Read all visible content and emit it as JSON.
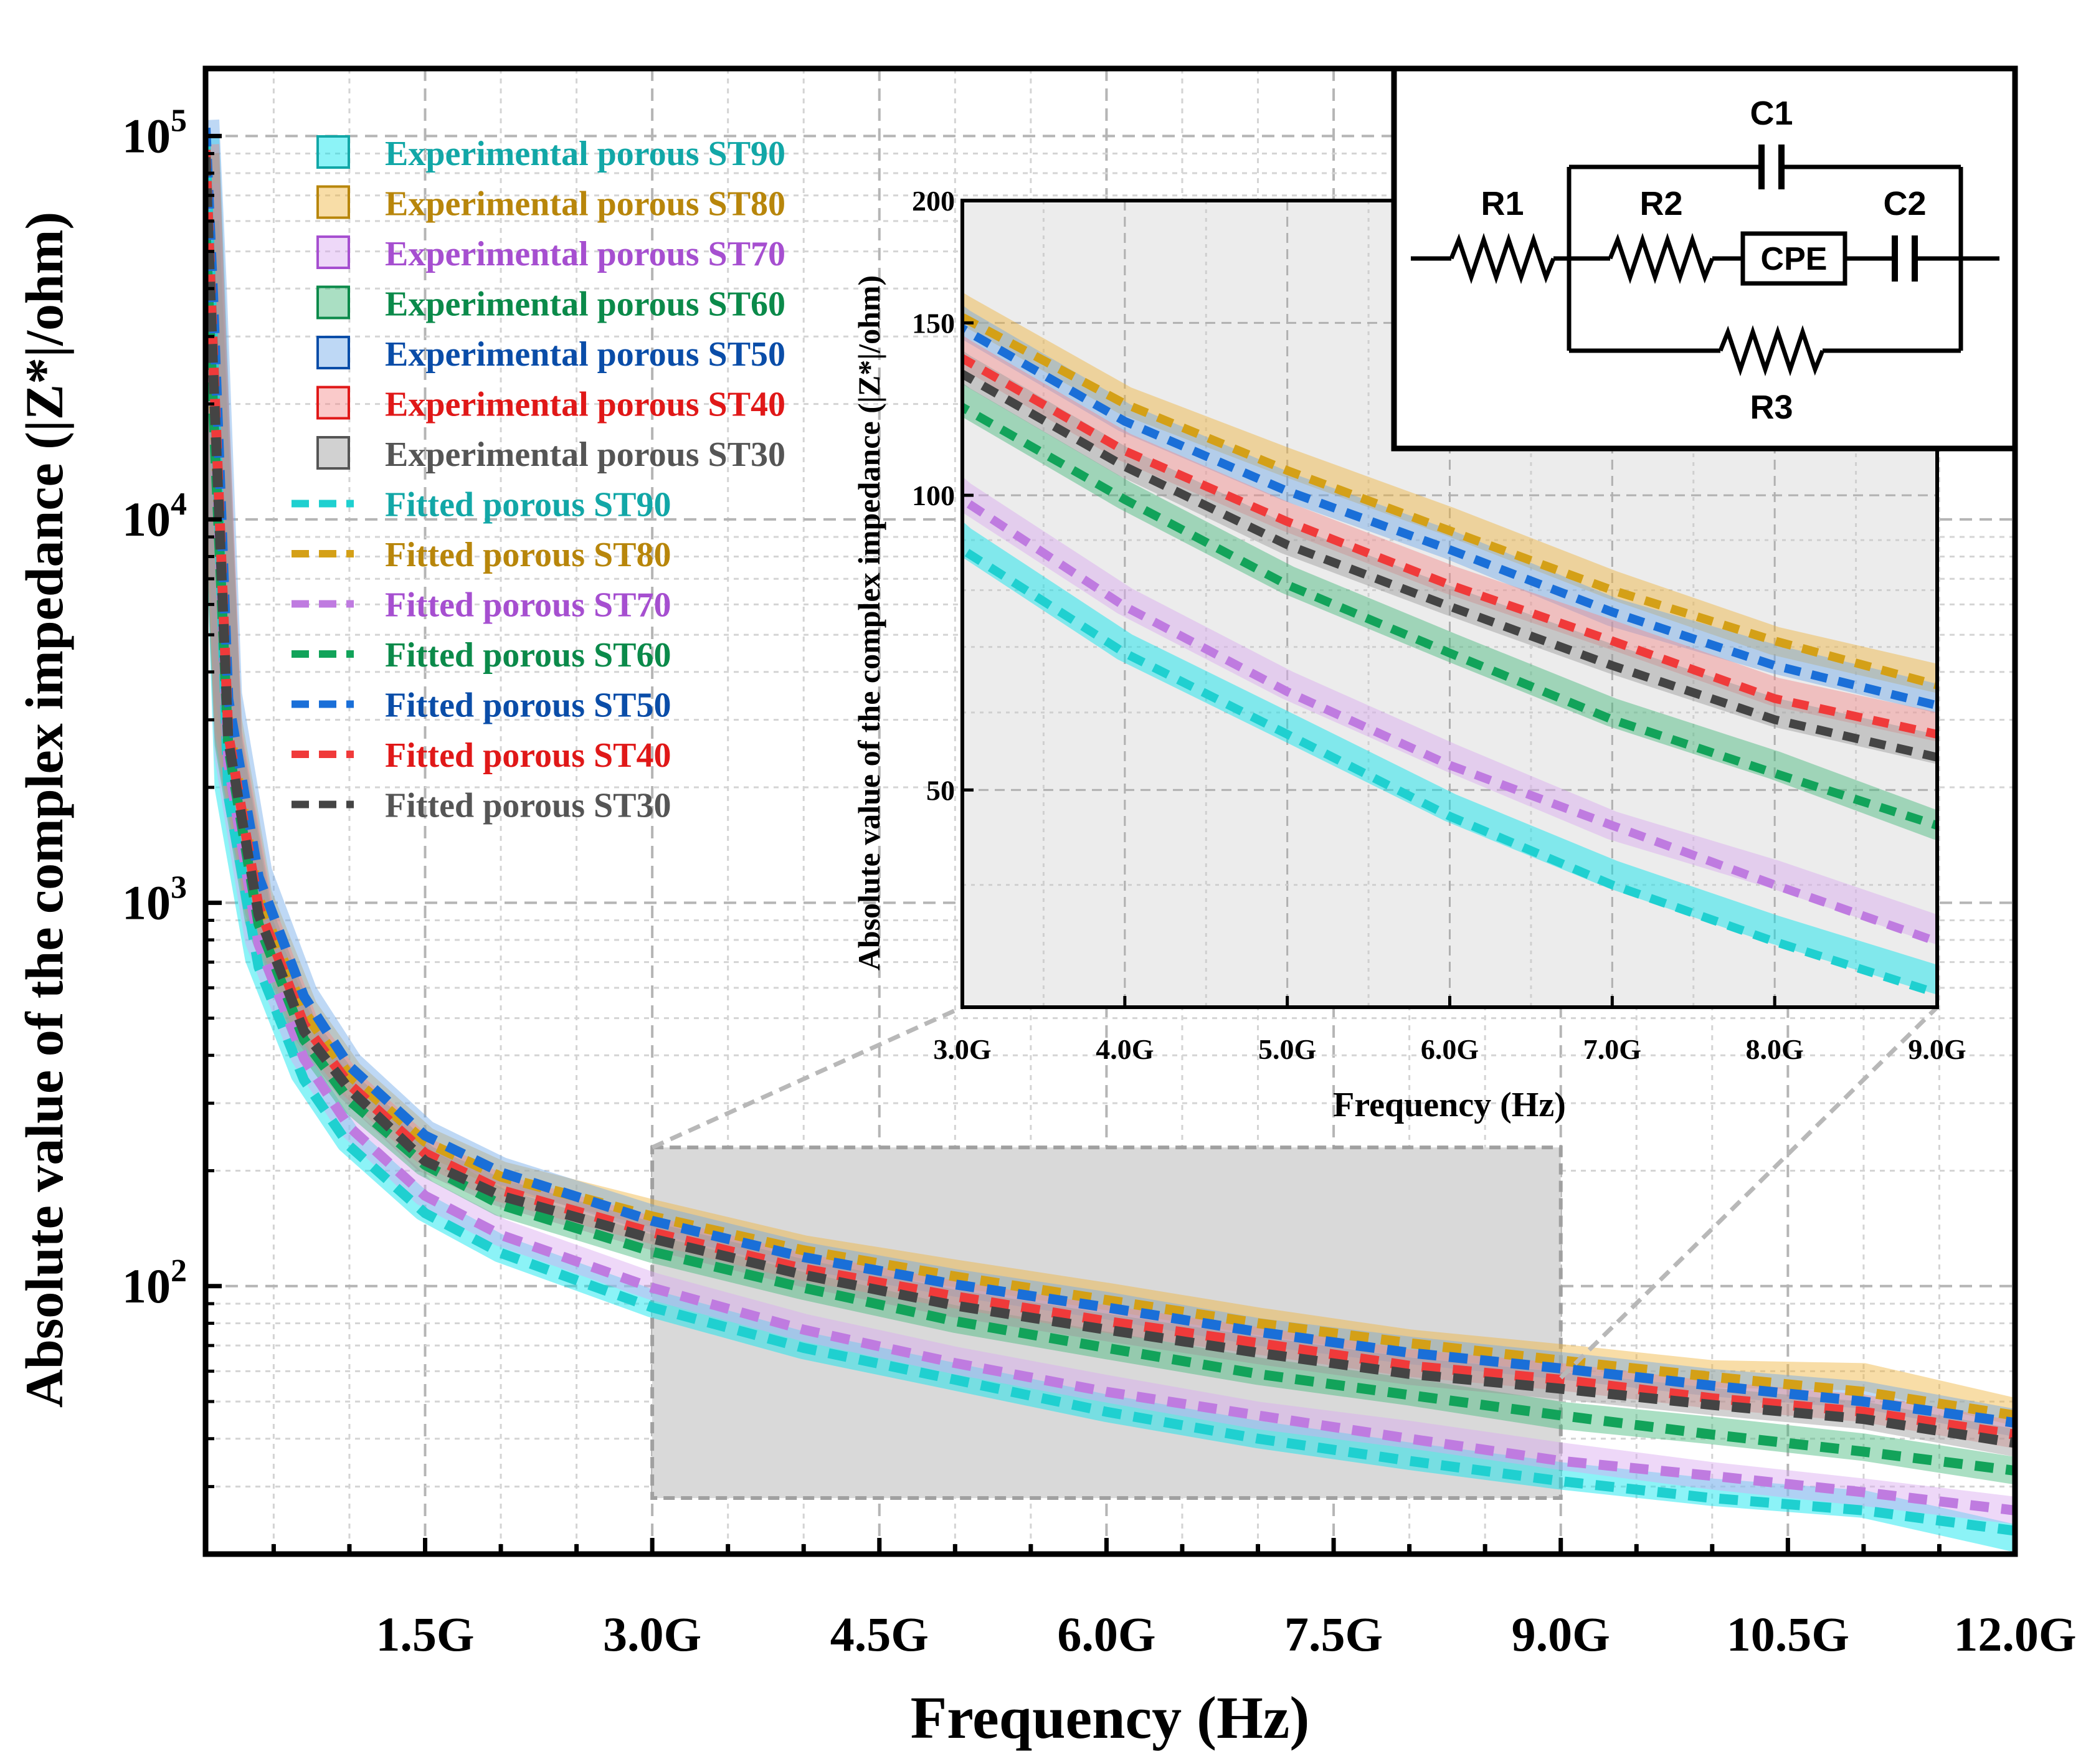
{
  "chart_data": {
    "type": "line",
    "title": "",
    "xlabel": "Frequency (Hz)",
    "ylabel": "Absolute value of the complex impedance (|Z*|/ohm)",
    "xscale": "linear",
    "yscale": "log",
    "xlim": [
      0.05,
      12.0
    ],
    "ylim": [
      20,
      150000
    ],
    "x_unit": "GHz",
    "xticks": [
      1.5,
      3.0,
      4.5,
      6.0,
      7.5,
      9.0,
      10.5,
      12.0
    ],
    "xtick_labels": [
      "1.5G",
      "3.0G",
      "4.5G",
      "6.0G",
      "7.5G",
      "9.0G",
      "10.5G",
      "12.0G"
    ],
    "ytick_labels": [
      "10",
      "10",
      "10",
      "10"
    ],
    "ytick_exponents": [
      "2",
      "3",
      "4",
      "5"
    ],
    "ytick_values": [
      100,
      1000,
      10000,
      100000
    ],
    "grid": true,
    "legend_position": "top-left",
    "legend": [
      {
        "label": "Experimental porous ST90",
        "kind": "square",
        "color": "#12a7a7",
        "fill": "#00e5ee"
      },
      {
        "label": "Experimental porous ST80",
        "kind": "square",
        "color": "#b8860b",
        "fill": "#f0b43c"
      },
      {
        "label": "Experimental porous ST70",
        "kind": "square",
        "color": "#a64fd0",
        "fill": "#d9a9f0"
      },
      {
        "label": "Experimental porous ST60",
        "kind": "square",
        "color": "#0b8a4a",
        "fill": "#43b77a"
      },
      {
        "label": "Experimental porous ST50",
        "kind": "square",
        "color": "#0a4da8",
        "fill": "#6fa8e8"
      },
      {
        "label": "Experimental porous ST40",
        "kind": "square",
        "color": "#e01818",
        "fill": "#f58a8a"
      },
      {
        "label": "Experimental porous ST30",
        "kind": "square",
        "color": "#555555",
        "fill": "#9a9a9a"
      },
      {
        "label": "Fitted porous ST90",
        "kind": "dash",
        "color": "#12a7a7",
        "fill": "#1fd0d0"
      },
      {
        "label": "Fitted porous ST80",
        "kind": "dash",
        "color": "#b8860b",
        "fill": "#d4a017"
      },
      {
        "label": "Fitted porous ST70",
        "kind": "dash",
        "color": "#a64fd0",
        "fill": "#bf7be0"
      },
      {
        "label": "Fitted porous ST60",
        "kind": "dash",
        "color": "#0b8a4a",
        "fill": "#12a35a"
      },
      {
        "label": "Fitted porous ST50",
        "kind": "dash",
        "color": "#0a4da8",
        "fill": "#1a6fd8"
      },
      {
        "label": "Fitted porous ST40",
        "kind": "dash",
        "color": "#e01818",
        "fill": "#f03a3a"
      },
      {
        "label": "Fitted porous ST30",
        "kind": "dash",
        "color": "#555555",
        "fill": "#444444"
      }
    ],
    "x": [
      0.05,
      0.1,
      0.2,
      0.4,
      0.7,
      1.0,
      1.5,
      2.0,
      3.0,
      4.0,
      5.0,
      6.0,
      7.0,
      8.0,
      9.0,
      10.0,
      11.0,
      12.0
    ],
    "series": [
      {
        "name": "Experimental porous ST90",
        "values": [
          100000,
          30000,
          2000,
          720,
          360,
          240,
          160,
          125,
          90,
          70,
          58,
          48,
          41,
          36,
          32,
          29,
          27,
          22
        ],
        "color": "#00e5ee"
      },
      {
        "name": "Experimental porous ST80",
        "values": [
          90000,
          20000,
          3000,
          1050,
          530,
          360,
          240,
          195,
          155,
          125,
          108,
          94,
          81,
          71,
          65,
          59,
          58,
          47
        ],
        "color": "#f0b43c"
      },
      {
        "name": "Experimental porous ST70",
        "values": [
          75000,
          25000,
          2400,
          800,
          400,
          265,
          175,
          138,
          100,
          78,
          64,
          54,
          46,
          41,
          36,
          32,
          29,
          26
        ],
        "color": "#d9a9f0"
      },
      {
        "name": "Experimental porous ST60",
        "values": [
          60000,
          20000,
          2600,
          900,
          450,
          310,
          210,
          165,
          125,
          100,
          82,
          70,
          60,
          53,
          46,
          42,
          38,
          33
        ],
        "color": "#43b77a"
      },
      {
        "name": "Experimental porous ST50",
        "values": [
          110000,
          40000,
          3500,
          1200,
          580,
          380,
          250,
          200,
          150,
          120,
          102,
          89,
          76,
          68,
          62,
          56,
          52,
          44
        ],
        "color": "#6fa8e8"
      },
      {
        "name": "Experimental porous ST40",
        "values": [
          95000,
          28000,
          2800,
          1000,
          490,
          340,
          225,
          180,
          140,
          112,
          95,
          82,
          72,
          63,
          58,
          52,
          48,
          41
        ],
        "color": "#f58a8a"
      },
      {
        "name": "Experimental porous ST30",
        "values": [
          90000,
          25000,
          2700,
          950,
          470,
          330,
          215,
          175,
          135,
          108,
          90,
          78,
          68,
          60,
          55,
          50,
          46,
          39
        ],
        "color": "#9a9a9a"
      },
      {
        "name": "Fitted porous ST90",
        "values": [
          95000,
          28000,
          1900,
          680,
          345,
          232,
          155,
          122,
          88,
          69,
          57,
          47,
          40,
          35,
          31,
          28,
          26,
          23
        ],
        "color": "#1fd0d0"
      },
      {
        "name": "Fitted porous ST80",
        "values": [
          88000,
          22000,
          2950,
          1030,
          520,
          355,
          238,
          193,
          152,
          124,
          106,
          92,
          80,
          71,
          64,
          58,
          53,
          46
        ],
        "color": "#d4a017"
      },
      {
        "name": "Fitted porous ST70",
        "values": [
          72000,
          24000,
          2300,
          780,
          392,
          260,
          172,
          136,
          99,
          77,
          63,
          53,
          46,
          40,
          35,
          32,
          29,
          26
        ],
        "color": "#bf7be0"
      },
      {
        "name": "Fitted porous ST60",
        "values": [
          58000,
          19500,
          2550,
          880,
          440,
          305,
          207,
          163,
          123,
          99,
          81,
          69,
          59,
          52,
          46,
          41,
          37,
          33
        ],
        "color": "#12a35a"
      },
      {
        "name": "Fitted porous ST50",
        "values": [
          105000,
          38000,
          3400,
          1170,
          570,
          375,
          247,
          198,
          148,
          119,
          101,
          88,
          76,
          67,
          61,
          55,
          50,
          44
        ],
        "color": "#1a6fd8"
      },
      {
        "name": "Fitted porous ST40",
        "values": [
          92000,
          27000,
          2750,
          980,
          482,
          336,
          222,
          178,
          138,
          111,
          94,
          81,
          71,
          62,
          57,
          51,
          47,
          41
        ],
        "color": "#f03a3a"
      },
      {
        "name": "Fitted porous ST30",
        "values": [
          88000,
          24500,
          2650,
          930,
          462,
          326,
          212,
          172,
          133,
          107,
          89,
          77,
          67,
          59,
          54,
          49,
          45,
          39
        ],
        "color": "#444444"
      }
    ],
    "zoom_box": {
      "xlim": [
        3.0,
        9.0
      ],
      "ylim": [
        28,
        230
      ]
    },
    "inset": {
      "type": "line",
      "xlabel": "Frequency (Hz)",
      "ylabel": "Absolute value of the complex impedance (|Z*|/ohm)",
      "xlim": [
        3.0,
        9.0
      ],
      "ylim": [
        30,
        200
      ],
      "yscale": "log",
      "xticks": [
        3.0,
        4.0,
        5.0,
        6.0,
        7.0,
        8.0,
        9.0
      ],
      "xtick_labels": [
        "3.0G",
        "4.0G",
        "5.0G",
        "6.0G",
        "7.0G",
        "8.0G",
        "9.0G"
      ],
      "yticks": [
        50,
        100,
        150,
        200
      ],
      "ytick_labels": [
        "50",
        "100",
        "150",
        "200"
      ]
    }
  },
  "circuit": {
    "labels": [
      "R1",
      "R2",
      "C1",
      "CPE",
      "C2",
      "R3"
    ]
  }
}
